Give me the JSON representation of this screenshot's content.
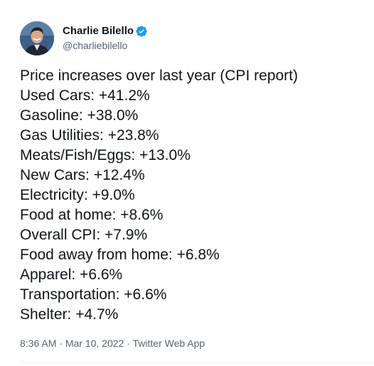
{
  "author": {
    "display_name": "Charlie Bilello",
    "handle": "@charliebilello",
    "verified_color": "#1d9bf0"
  },
  "tweet": {
    "lines": [
      "Price increases over last year (CPI report)",
      "Used Cars: +41.2%",
      "Gasoline: +38.0%",
      "Gas Utilities: +23.8%",
      "Meats/Fish/Eggs: +13.0%",
      "New Cars: +12.4%",
      "Electricity: +9.0%",
      "Food at home: +8.6%",
      "Overall CPI: +7.9%",
      "Food away from home: +6.8%",
      "Apparel: +6.6%",
      "Transportation: +6.6%",
      "Shelter: +4.7%"
    ]
  },
  "meta": {
    "time": "8:36 AM",
    "separator": " · ",
    "date": "Mar 10, 2022",
    "source": "Twitter Web App"
  },
  "icons": {
    "verified": "verified-badge-icon"
  }
}
